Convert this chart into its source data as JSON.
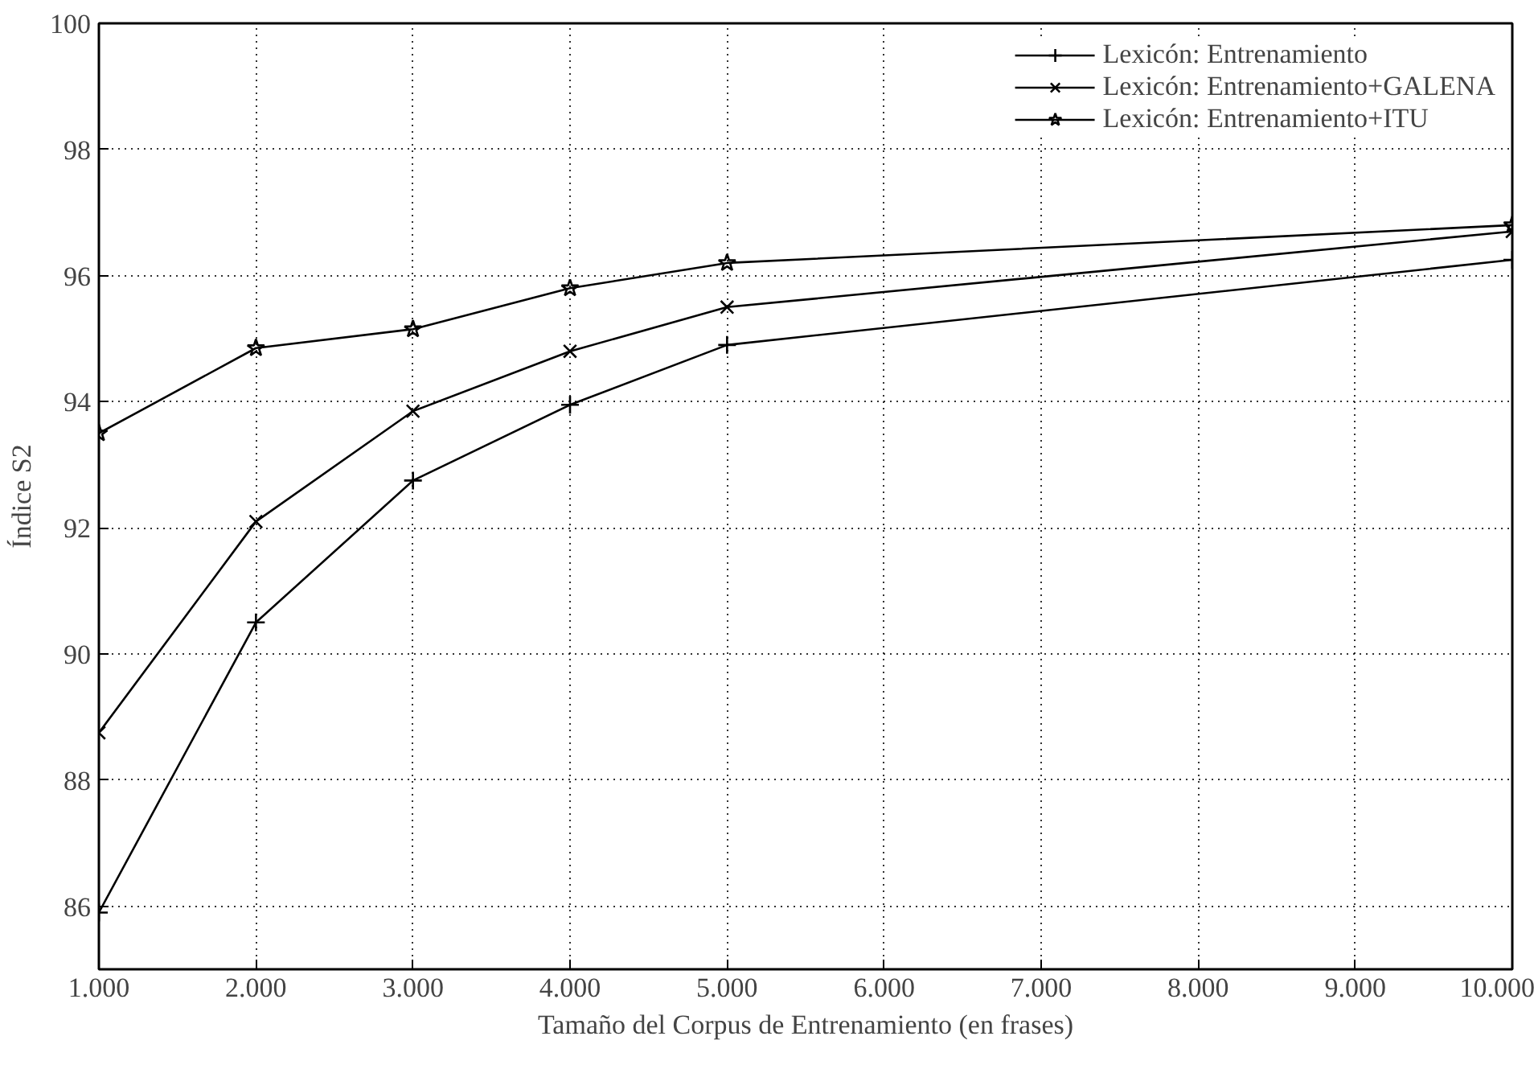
{
  "chart_data": {
    "type": "line",
    "xlabel": "Tamaño del Corpus de Entrenamiento (en frases)",
    "ylabel": "Índice S2",
    "x": [
      1000,
      2000,
      3000,
      4000,
      5000,
      10000
    ],
    "series": [
      {
        "name": "Lexicón: Entrenamiento",
        "color": "#000000",
        "marker": "cross",
        "values": [
          85.9,
          90.5,
          92.75,
          93.95,
          94.9,
          96.25
        ]
      },
      {
        "name": "Lexicón: Entrenamiento+GALENA",
        "color": "#000000",
        "marker": "x",
        "values": [
          88.75,
          92.1,
          93.85,
          94.8,
          95.5,
          96.7
        ]
      },
      {
        "name": "Lexicón: Entrenamiento+ITU",
        "color": "#000000",
        "marker": "star",
        "values": [
          93.5,
          94.85,
          95.15,
          95.8,
          96.2,
          96.8
        ]
      }
    ],
    "xlim": [
      1000,
      10000
    ],
    "xticks": [
      {
        "value": 1000,
        "label": "1.000"
      },
      {
        "value": 2000,
        "label": "2.000"
      },
      {
        "value": 3000,
        "label": "3.000"
      },
      {
        "value": 4000,
        "label": "4.000"
      },
      {
        "value": 5000,
        "label": "5.000"
      },
      {
        "value": 6000,
        "label": "6.000"
      },
      {
        "value": 7000,
        "label": "7.000"
      },
      {
        "value": 8000,
        "label": "8.000"
      },
      {
        "value": 9000,
        "label": "9.000"
      },
      {
        "value": 10000,
        "label": "10.000"
      }
    ],
    "ylim": [
      85,
      100
    ],
    "yticks": [
      86,
      88,
      90,
      92,
      94,
      96,
      98,
      100
    ],
    "grid": true,
    "legend": "top right",
    "line_style": "solid"
  }
}
